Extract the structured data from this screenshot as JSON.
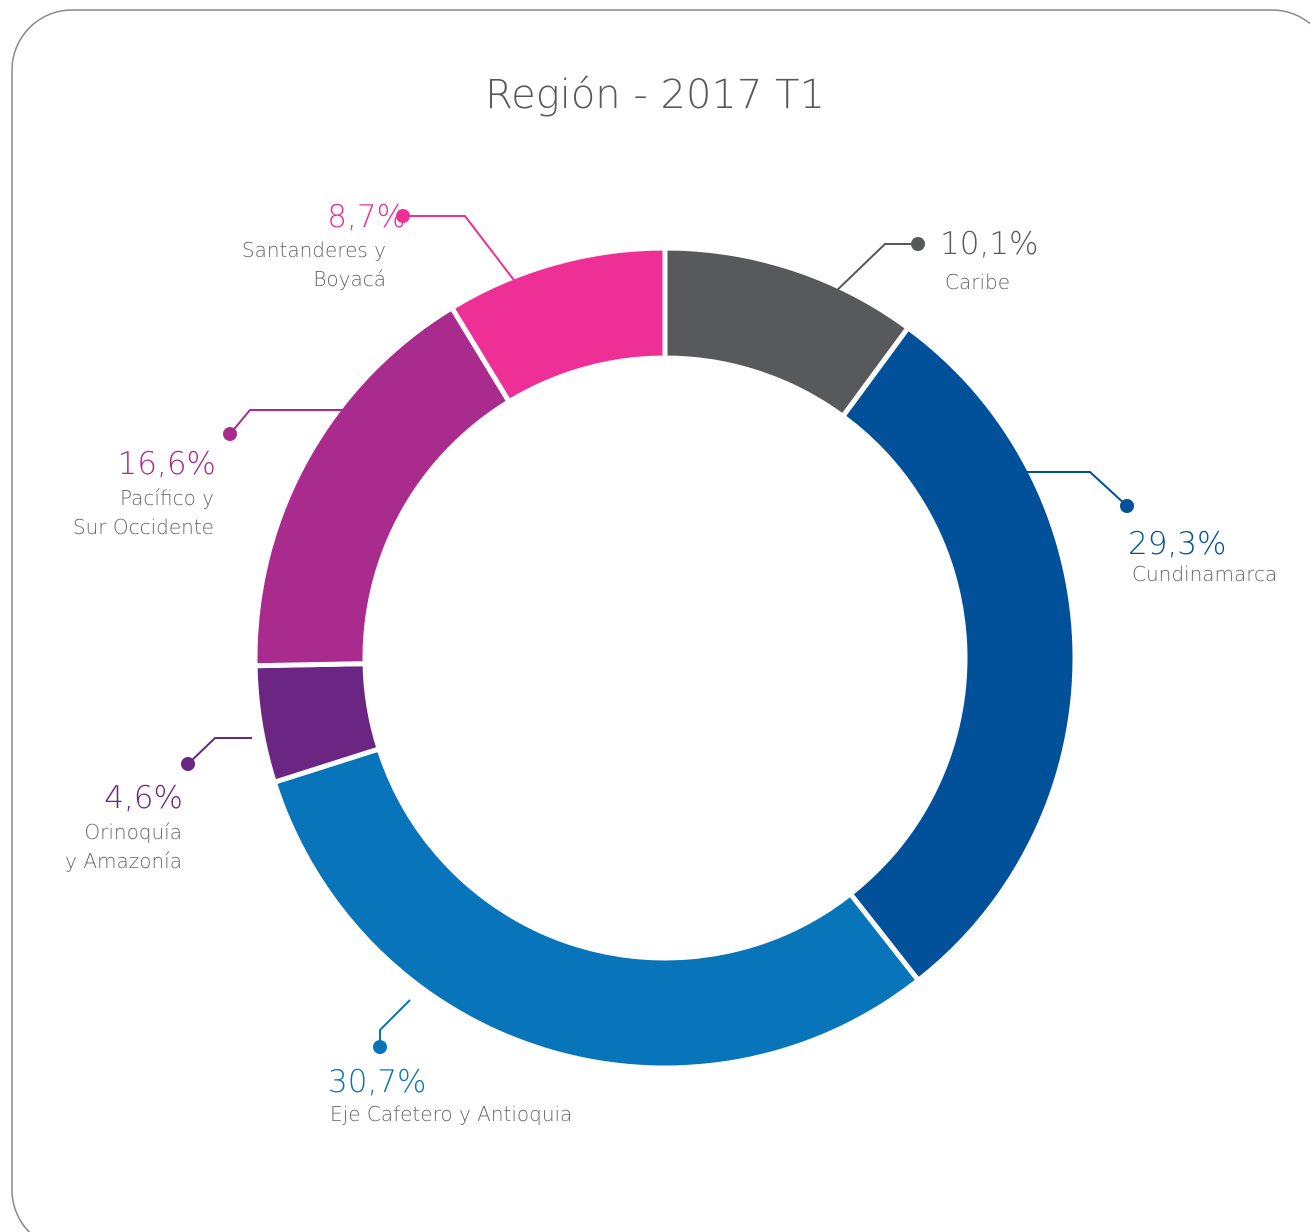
{
  "chart_data": {
    "type": "donut",
    "title": "Región - 2017 T1",
    "categories": [
      "Caribe",
      "Cundinamarca",
      "Eje Cafetero y Antioquia",
      "Orinoquía\ny Amazonía",
      "Pacífico y\nSur Occidente",
      "Santanderes y\nBoyacá"
    ],
    "values": [
      10.1,
      29.3,
      30.7,
      4.6,
      16.6,
      8.7
    ],
    "value_labels": [
      "10,1%",
      "29,3%",
      "30,7%",
      "4,6%",
      "16,6%",
      "8,7%"
    ],
    "colors": [
      "#58595b",
      "#00509a",
      "#0874ba",
      "#6b2683",
      "#aa2b8e",
      "#ed2f96"
    ]
  }
}
